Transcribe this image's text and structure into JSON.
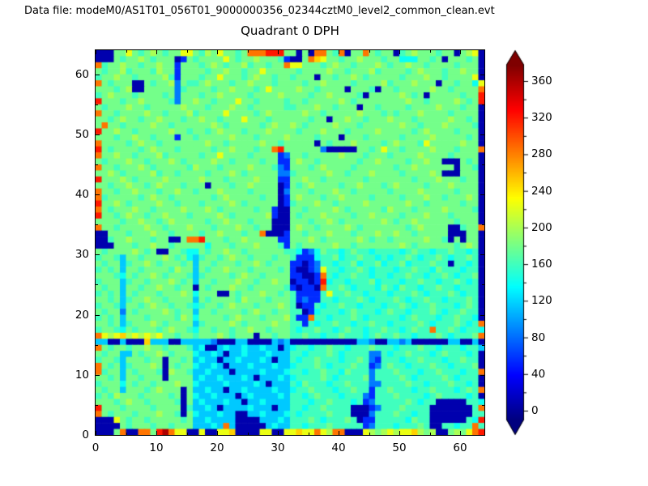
{
  "header": {
    "data_file_label": "Data file: modeM0/AS1T01_056T01_9000000356_02344cztM0_level2_common_clean.evt"
  },
  "chart_data": {
    "type": "heatmap",
    "title": "Quadrant 0 DPH",
    "xlabel": "",
    "ylabel": "",
    "xlim": [
      0,
      64
    ],
    "ylim": [
      0,
      64
    ],
    "grid_size": 64,
    "x_ticks": [
      0,
      10,
      20,
      30,
      40,
      50,
      60
    ],
    "y_ticks": [
      0,
      10,
      20,
      30,
      40,
      50,
      60
    ],
    "minor_tick_step": 5,
    "colorbar": {
      "colormap": "jet",
      "extend": "both",
      "ticks": [
        0,
        40,
        80,
        120,
        160,
        200,
        240,
        280,
        320,
        360
      ],
      "minor_step": 20,
      "vmin": -10,
      "vmax": 378
    },
    "values_encoding": "rows ordered y=63 (top) to y=0 (bottom); each row is 4 chunks of 16 chars, chars are x=0..63 left to right; char -> approximate DPH count via value_map",
    "value_map": {
      "0": 8,
      "1": 55,
      "2": 85,
      "3": 115,
      "4": 140,
      "5": 160,
      "6": 180,
      "7": 200,
      "8": 225,
      "9": 250,
      "a": 285,
      "b": 320,
      "c": 360
    },
    "rows_top_to_bottom": [
      [
        "0006686567656688",
        "657686656aaabbb6",
        "6060aa65a066a656",
        "6056766656606780"
      ],
      [
        "0006566765666016",
        "5666686566766651",
        "006a986656676665",
        "6644466560666560"
      ],
      [
        "a566766566766166",
        "656765667566566a",
        "8866656766566676",
        "5667665666656660"
      ],
      [
        "6566756665766166",
        "6656676656686666",
        "6566667665666756",
        "6665676665667660"
      ],
      [
        "5667665666675166",
        "6566866656766566",
        "5666066566765666",
        "6656667665666680"
      ],
      [
        "a656660065667265",
        "5676665667666566",
        "6656676666566667",
        "5666766606656648"
      ],
      [
        "6665670066666256",
        "6665667666568666",
        "6766566660666506",
        "656666676656666a"
      ],
      [
        "5676665666656266",
        "6566766665666676",
        "6665667666650666",
        "667656066666566b"
      ],
      [
        "b666566766665266",
        "7665666866566665",
        "6656666676566666",
        "666766566667656b"
      ],
      [
        "6566676656666676",
        "6656667665666665",
        "5666766566606656",
        "6665666676665660"
      ],
      [
        "a665666676656667",
        "5666686666567666",
        "6676656666676665",
        "6566676666566660"
      ],
      [
        "6656766566766656",
        "6766566686665666",
        "6665660667665666",
        "7666566666766560"
      ],
      [
        "6a66566667665666",
        "6667656666656766",
        "7656666766656666",
        "6676656667666650"
      ],
      [
        "b667665666667665",
        "6656766656667666",
        "6566676665666676",
        "6666567666656660"
      ],
      [
        "6665667665666166",
        "5666667666566667",
        "6666566606665666",
        "6656666766666560"
      ],
      [
        "a666656766566666",
        "6676656666676656",
        "6666065666766665",
        "6766658666667660"
      ],
      [
        "b656666567666566",
        "6665667666566ab6",
        "6666620000066568",
        "665666676665666a"
      ],
      [
        "a667665666756666",
        "6566866665666612",
        "6656666676665666",
        "5666676666566660"
      ],
      [
        "6566676656667656",
        "6667665666656611",
        "6766566666656676",
        "6665667660006560"
      ],
      [
        "a665666765666665",
        "7666566667666521",
        "6665676666566666",
        "6566766666606650"
      ],
      [
        "6676566667566566",
        "6656667656666622",
        "5666667665666766",
        "6656666760006660"
      ],
      [
        "b666765666676666",
        "6766656666766611",
        "6676656666665666",
        "6666566676665660"
      ],
      [
        "6656676656766656",
        "6606665667666601",
        "6567666656676665",
        "6766665666766660"
      ],
      [
        "a665667666566766",
        "5666766665666602",
        "6665666766566666",
        "5666676666656660"
      ],
      [
        "a566666567665666",
        "6665676666656601",
        "6766656676666566",
        "6656667665666760"
      ],
      [
        "b667656666766566",
        "6566667656666601",
        "5666766566667666",
        "6667665666665660"
      ],
      [
        "a656667665666676",
        "6676566666566100",
        "6656666765666665",
        "7666566667666650"
      ],
      [
        "b665676656676665",
        "6666765666667100",
        "6566676666566766",
        "6656667666566660"
      ],
      [
        "6666566766567666",
        "6656676665666000",
        "6665667656666667",
        "6566766666656660"
      ],
      [
        "a665666676656667",
        "6665666766566000",
        "6766566667656666",
        "666567666600566a"
      ],
      [
        "0066656667665666",
        "65667666566a0001",
        "6656667666566676",
        "6766566666000660"
      ],
      [
        "005667666566006a",
        "ab66656676666611",
        "6667656666676566",
        "5666667665060660"
      ],
      [
        "0006665667665666",
        "6646665666766651",
        "6566666766566666",
        "6676566666656760"
      ],
      [
        "6566667656006654",
        "4656676656666665",
        "5412465545655455",
        "5545655455655450"
      ],
      [
        "5665366566676564",
        "3566567665666566",
        "5111455645565545",
        "4556545565455650"
      ],
      [
        "6566356676566656",
        "3665666566765666",
        "1101255455645564",
        "5564555655055450"
      ],
      [
        "5656366566665766",
        "3656676665666656",
        "1001285545565455",
        "5455655465554550"
      ],
      [
        "6665465667656665",
        "3566665676656666",
        "11001a5455655455",
        "4556554556545560"
      ],
      [
        "5666356656667656",
        "3665666766566766",
        "01101b4554555645",
        "5545565545565450"
      ],
      [
        "6566366566766566",
        "0656667665666665",
        "10110a5565455546",
        "5465545565545550"
      ],
      [
        "5656365666566676",
        "4666006566676656",
        "5111158556554555",
        "4555654555654550"
      ],
      [
        "6656356676656666",
        "3656666576665666",
        "5121155455565455",
        "5654556554555650"
      ],
      [
        "5665366567665665",
        "4566567666566676",
        "5011545565545554",
        "5565455655545650"
      ],
      [
        "6566265666676566",
        "3665666656766566",
        "5501455545655545",
        "6554555654556550"
      ],
      [
        "5656366656666576",
        "4666656766656667",
        "511a554555654555",
        "5545655545565540"
      ],
      [
        "6656356667656666",
        "3566667656666766",
        "5515455655455655",
        "455556545556545a"
      ],
      [
        "5665465666567665",
        "4665665667665666",
        "5455655456554556",
        "5545655a55654554"
      ],
      [
        "a878978787866566",
        "5666765666066566",
        "5565545565554565",
        "565545556545556a"
      ],
      [
        "3300300093330033",
        "3332000330000323",
        "0000000000033200",
        "3323000000330030"
      ],
      [
        "a656656676656665",
        "3400343343343303",
        "4554556554555655",
        "5455565545554553"
      ],
      [
        "6566336566765666",
        "4334303343334333",
        "5545556545555225",
        "4556555456555450"
      ],
      [
        "5665366656606656",
        "3433033433343033",
        "5455655545565215",
        "5545565554556550"
      ],
      [
        "a656356667606566",
        "4334303334333433",
        "4555654555655125",
        "6554555655455560"
      ],
      [
        "a566365666507665",
        "3343330333343334",
        "5545565546555255",
        "565554556555455a"
      ],
      [
        "6656366566606666",
        "3433433343033343",
        "4555565455556255",
        "5565455556545550"
      ],
      [
        "5666465665666766",
        "4333343333430333",
        "5465554556555225",
        "5556554555655450"
      ],
      [
        "6566366656766606",
        "3343303343333433",
        "4556555455655155",
        "655545565554565a"
      ],
      [
        "5657666566665606",
        "4334333034333343",
        "5545655545552155",
        "5655554565555450"
      ],
      [
        "6665676656666506",
        "3433343303343333",
        "5554556555451255",
        "5556545500000554"
      ],
      [
        "b666566665666605",
        "3343033334333033",
        "5545565555000125",
        "556555500000005a"
      ],
      [
        "a656665666766506",
        "4333433003343334",
        "5455556555000255",
        "5655455000000055"
      ],
      [
        "0008656656666656",
        "3343333000033343",
        "5556545556501155",
        "555465500000054b"
      ],
      [
        "0000656665665666",
        "33343a3000003433",
        "5545556555551255",
        "54555650055455a5"
      ],
      [
        "0006a00aa6bca880",
        "0800889000088008",
        "8988a87aa0008767",
        "87889767006768ab"
      ]
    ]
  }
}
